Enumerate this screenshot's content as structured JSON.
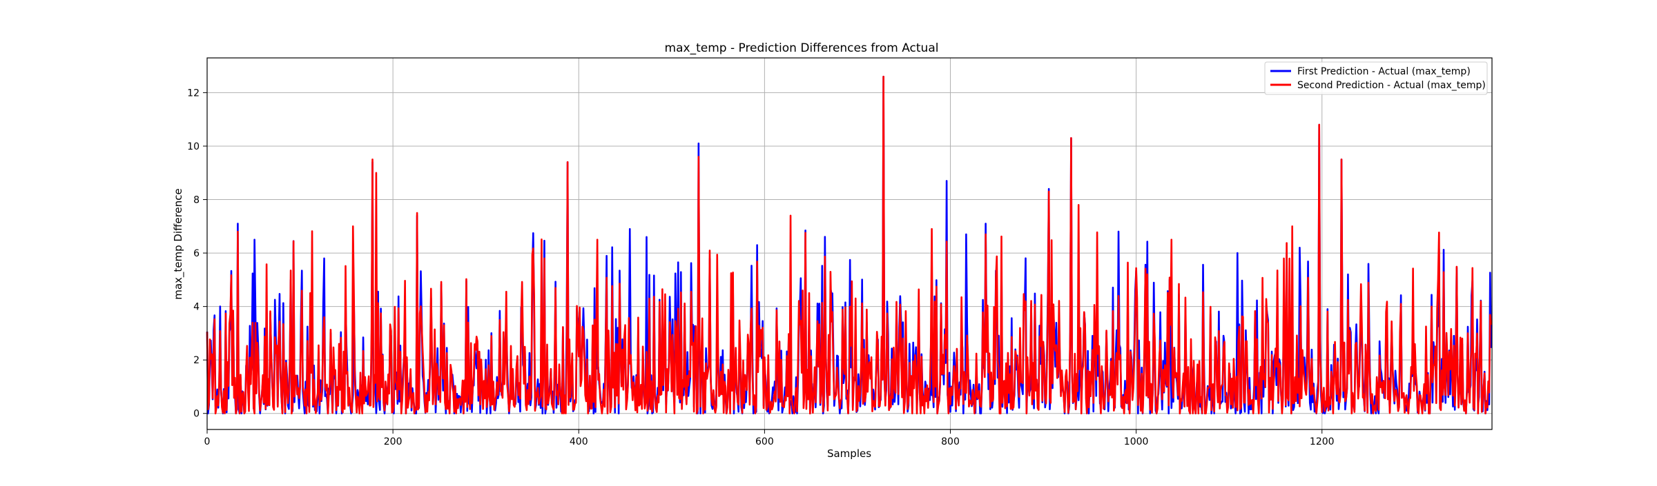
{
  "chart_data": {
    "type": "line",
    "title": "max_temp - Prediction Differences from Actual",
    "xlabel": "Samples",
    "ylabel": "max_temp Difference",
    "xlim": [
      0,
      1383
    ],
    "ylim": [
      -0.6,
      13.3
    ],
    "xticks": [
      0,
      200,
      400,
      600,
      800,
      1000,
      1200
    ],
    "yticks": [
      0,
      2,
      4,
      6,
      8,
      10,
      12
    ],
    "grid": true,
    "legend_position": "top-right",
    "sample_count": 1383,
    "series": [
      {
        "name": "First Prediction - Actual (max_temp)",
        "color": "#0000ff",
        "peaks": [
          [
            33,
            7.1
          ],
          [
            51,
            6.5
          ],
          [
            126,
            5.8
          ],
          [
            178,
            9.4
          ],
          [
            226,
            7.4
          ],
          [
            388,
            9.4
          ],
          [
            455,
            6.9
          ],
          [
            473,
            6.6
          ],
          [
            529,
            10.1
          ],
          [
            728,
            12.6
          ],
          [
            796,
            8.7
          ],
          [
            817,
            6.7
          ],
          [
            838,
            7.1
          ],
          [
            906,
            8.4
          ],
          [
            930,
            10.3
          ],
          [
            1109,
            6.0
          ],
          [
            1176,
            6.2
          ],
          [
            1197,
            10.8
          ],
          [
            1221,
            9.5
          ],
          [
            1361,
            4.4
          ]
        ]
      },
      {
        "name": "Second Prediction - Actual (max_temp)",
        "color": "#ff0000",
        "peaks": [
          [
            33,
            6.8
          ],
          [
            157,
            7.0
          ],
          [
            178,
            9.5
          ],
          [
            182,
            9.0
          ],
          [
            226,
            7.5
          ],
          [
            388,
            9.4
          ],
          [
            420,
            6.5
          ],
          [
            529,
            9.6
          ],
          [
            628,
            7.4
          ],
          [
            728,
            12.6
          ],
          [
            780,
            6.9
          ],
          [
            838,
            6.7
          ],
          [
            906,
            8.3
          ],
          [
            930,
            10.3
          ],
          [
            938,
            7.8
          ],
          [
            1038,
            6.5
          ],
          [
            1168,
            7.0
          ],
          [
            1197,
            10.8
          ],
          [
            1221,
            9.5
          ]
        ]
      }
    ]
  }
}
